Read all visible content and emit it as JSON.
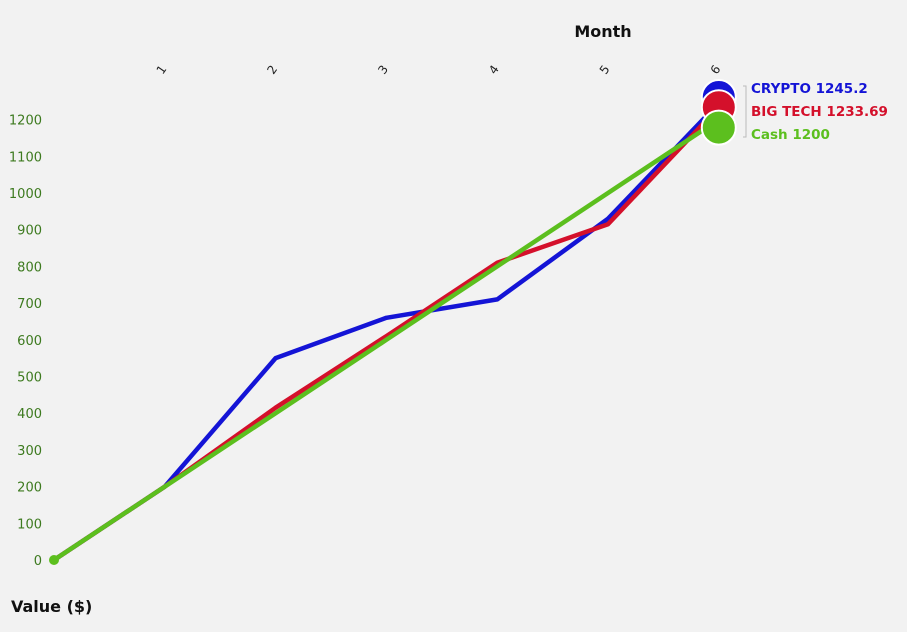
{
  "chart_data": {
    "type": "line",
    "xlabel": "Month",
    "ylabel": "Value ($)",
    "x": [
      0,
      1,
      2,
      3,
      4,
      5,
      6
    ],
    "x_tick_labels": [
      "1",
      "2",
      "3",
      "4",
      "5",
      "6"
    ],
    "ylim": [
      0,
      1200
    ],
    "y_ticks": [
      0,
      100,
      200,
      300,
      400,
      500,
      600,
      700,
      800,
      900,
      1000,
      1100,
      1200
    ],
    "grid": false,
    "legend": "end-of-line labels, right",
    "series": [
      {
        "name": "CRYPTO",
        "color": "#1414d6",
        "values": [
          0,
          200,
          550,
          660,
          710,
          930,
          1245.2
        ],
        "end_label": "CRYPTO 1245.2"
      },
      {
        "name": "BIG TECH",
        "color": "#d4102b",
        "values": [
          0,
          200,
          415,
          610,
          810,
          915,
          1233.69
        ],
        "end_label": "BIG TECH 1233.69"
      },
      {
        "name": "Cash",
        "color": "#5cbf1e",
        "values": [
          0,
          200,
          400,
          600,
          800,
          1000,
          1200
        ],
        "end_label": "Cash 1200"
      }
    ]
  }
}
